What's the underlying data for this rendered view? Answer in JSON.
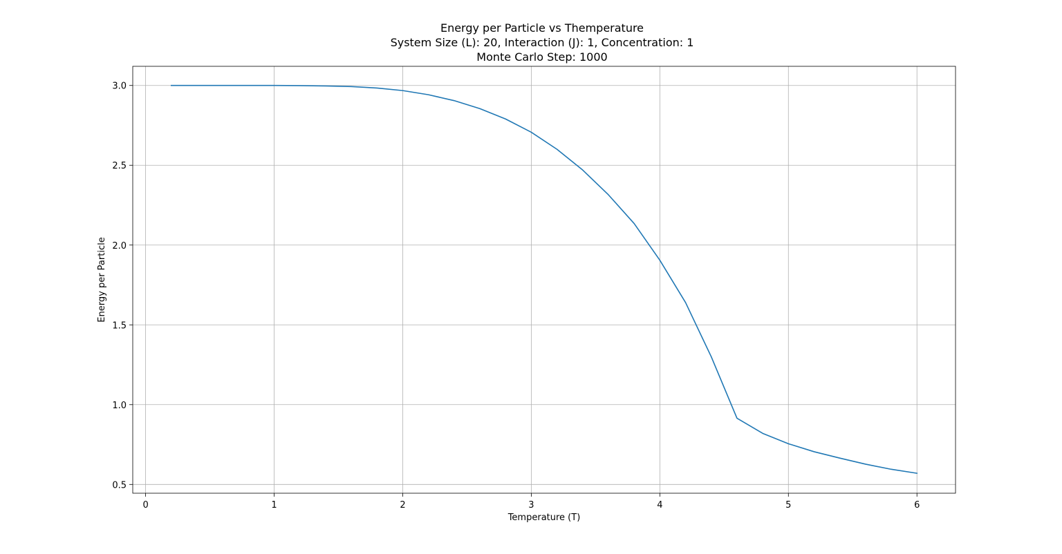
{
  "chart_data": {
    "type": "line",
    "title_lines": [
      "Energy per Particle vs Themperature",
      "System Size (L): 20, Interaction (J): 1, Concentration: 1",
      "Monte Carlo Step: 1000"
    ],
    "xlabel": "Temperature (T)",
    "ylabel": "Energy per Particle",
    "xlim": [
      -0.1,
      6.3
    ],
    "ylim": [
      0.445,
      3.12
    ],
    "xticks": [
      0,
      1,
      2,
      3,
      4,
      5,
      6
    ],
    "yticks": [
      0.5,
      1.0,
      1.5,
      2.0,
      2.5,
      3.0
    ],
    "xtick_labels": [
      "0",
      "1",
      "2",
      "3",
      "4",
      "5",
      "6"
    ],
    "ytick_labels": [
      "0.5",
      "1.0",
      "1.5",
      "2.0",
      "2.5",
      "3.0"
    ],
    "grid": true,
    "series": [
      {
        "color": "#1f77b4",
        "x": [
          0.2,
          0.4,
          0.6,
          0.8,
          1.0,
          1.2,
          1.4,
          1.6,
          1.8,
          2.0,
          2.2,
          2.4,
          2.6,
          2.8,
          3.0,
          3.2,
          3.4,
          3.6,
          3.8,
          4.0,
          4.2,
          4.4,
          4.6,
          4.8,
          5.0,
          5.2,
          5.4,
          5.6,
          5.8,
          6.0
        ],
        "y": [
          3.0,
          3.0,
          3.0,
          3.0,
          3.0,
          2.999,
          2.997,
          2.993,
          2.984,
          2.968,
          2.942,
          2.905,
          2.855,
          2.79,
          2.707,
          2.6,
          2.47,
          2.315,
          2.135,
          1.905,
          1.64,
          1.3,
          0.915,
          0.82,
          0.755,
          0.705,
          0.665,
          0.627,
          0.595,
          0.57
        ]
      }
    ]
  }
}
